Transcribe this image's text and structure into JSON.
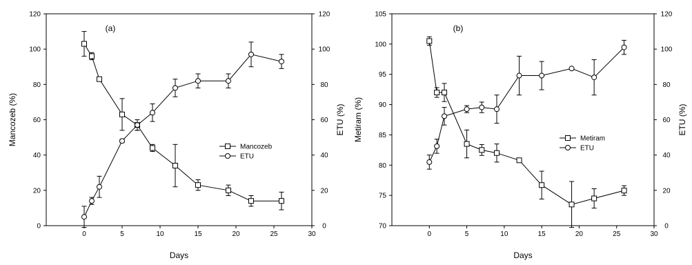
{
  "chart_data": [
    {
      "type": "line",
      "panel_label": "(a)",
      "xlabel": "Days",
      "ylabel": "Mancozeb (%)",
      "y2label": "ETU (%)",
      "xlim": [
        -5,
        30
      ],
      "ylim": [
        0,
        120
      ],
      "y2lim": [
        0,
        120
      ],
      "xticks": [
        0,
        5,
        10,
        15,
        20,
        25,
        30
      ],
      "yticks": [
        0,
        20,
        40,
        60,
        80,
        100,
        120
      ],
      "y2ticks": [
        0,
        20,
        40,
        60,
        80,
        100,
        120
      ],
      "legend_position": "center-right",
      "grid": false,
      "series": [
        {
          "name": "Mancozeb",
          "marker": "square",
          "axis": "left",
          "x": [
            0,
            1,
            2,
            5,
            7,
            9,
            12,
            15,
            19,
            22,
            26
          ],
          "values": [
            103,
            96,
            83,
            63,
            57,
            44,
            34,
            23,
            20,
            14,
            14
          ],
          "errors": [
            7,
            2,
            1,
            9,
            3,
            2,
            12,
            3,
            3,
            3,
            5
          ]
        },
        {
          "name": "ETU",
          "marker": "circle",
          "axis": "right",
          "x": [
            0,
            1,
            2,
            5,
            7,
            9,
            12,
            15,
            19,
            22,
            26
          ],
          "values": [
            5,
            14,
            22,
            48,
            57,
            64,
            78,
            82,
            82,
            97,
            93
          ],
          "errors": [
            6,
            2,
            6,
            1,
            3,
            5,
            5,
            4,
            4,
            7,
            4
          ]
        }
      ]
    },
    {
      "type": "line",
      "panel_label": "(b)",
      "xlabel": "Days",
      "ylabel": "Metiram (%)",
      "y2label": "ETU (%)",
      "xlim": [
        -5,
        30
      ],
      "ylim": [
        70,
        105
      ],
      "y2lim": [
        0,
        120
      ],
      "xticks": [
        0,
        5,
        10,
        15,
        20,
        25,
        30
      ],
      "yticks": [
        70,
        75,
        80,
        85,
        90,
        95,
        100,
        105
      ],
      "y2ticks": [
        0,
        20,
        40,
        60,
        80,
        100,
        120
      ],
      "legend_position": "center-right",
      "grid": false,
      "series": [
        {
          "name": "Metiram",
          "marker": "square",
          "axis": "left",
          "x": [
            0,
            1,
            2,
            5,
            7,
            9,
            12,
            15,
            19,
            22,
            26
          ],
          "values": [
            100.5,
            92,
            92,
            83.5,
            82.5,
            82,
            80.8,
            76.7,
            73.5,
            74.5,
            75.8
          ],
          "errors": [
            0.7,
            0.8,
            1.5,
            2.3,
            0.9,
            1.5,
            0,
            2.3,
            3.8,
            1.6,
            0.8
          ]
        },
        {
          "name": "ETU",
          "marker": "circle",
          "axis": "right",
          "x": [
            0,
            1,
            2,
            5,
            7,
            9,
            12,
            15,
            19,
            22,
            26
          ],
          "values": [
            36,
            45,
            62,
            66,
            67,
            66,
            85,
            85,
            89,
            84,
            101
          ],
          "errors": [
            4,
            4,
            5,
            2,
            3,
            8,
            11,
            8,
            0,
            10,
            4
          ]
        }
      ]
    }
  ]
}
